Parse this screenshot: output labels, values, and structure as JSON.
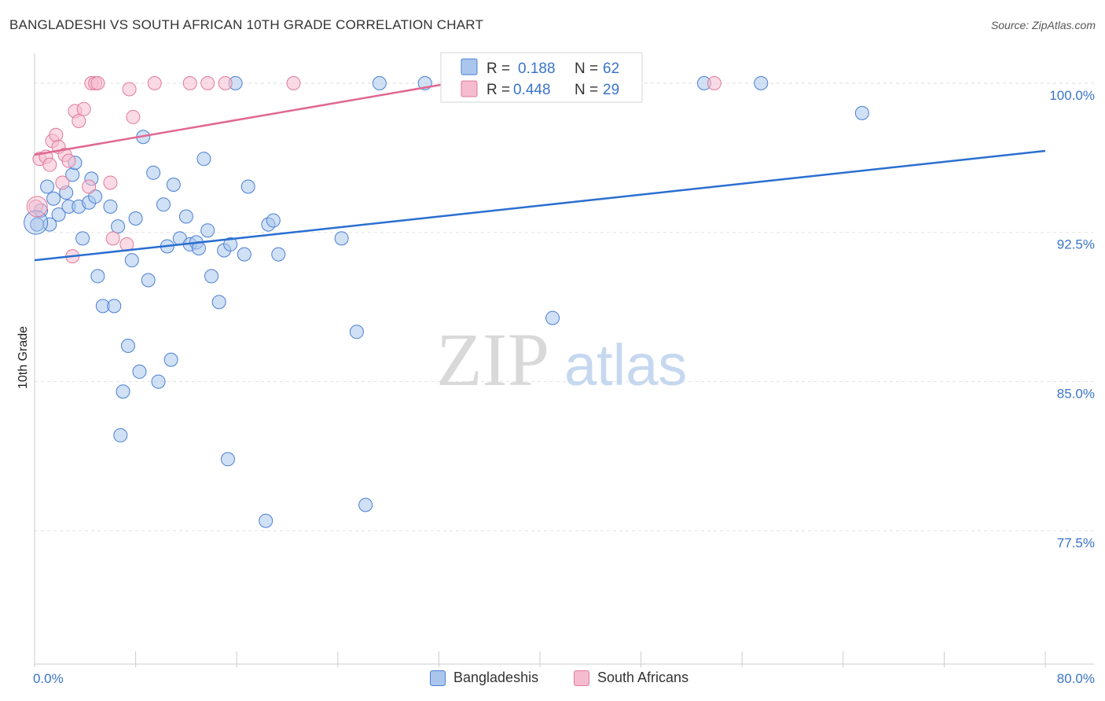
{
  "header": {
    "title": "BANGLADESHI VS SOUTH AFRICAN 10TH GRADE CORRELATION CHART",
    "source": "Source: ZipAtlas.com"
  },
  "watermark": {
    "zip": "ZIP",
    "atlas": "atlas"
  },
  "colors": {
    "blue": "#4a7fd4",
    "blue_fill": "#aac6ec",
    "blue_line": "#2a6fd0",
    "pink": "#e07a9a",
    "pink_fill": "#f5bcd0",
    "pink_line": "#e06890",
    "axis_text": "#3a74c9"
  },
  "legend": {
    "rows": [
      {
        "r_label": "R =",
        "r_value": "0.188",
        "n_label": "N =",
        "n_value": "62"
      },
      {
        "r_label": "R =",
        "r_value": "0.448",
        "n_label": "N =",
        "n_value": "29"
      }
    ]
  },
  "bottom_legend": {
    "items": [
      {
        "label": "Bangladeshis"
      },
      {
        "label": "South Africans"
      }
    ]
  },
  "chart_data": {
    "type": "scatter",
    "title": "BANGLADESHI VS SOUTH AFRICAN 10TH GRADE CORRELATION CHART",
    "xlabel": "",
    "ylabel": "10th Grade",
    "xlim": [
      0,
      80
    ],
    "ylim": [
      70.8,
      101.3
    ],
    "x_tick_labels": [
      "0.0%",
      "80.0%"
    ],
    "y_ticks": [
      77.5,
      85.0,
      92.5,
      100.0
    ],
    "y_tick_labels": [
      "77.5%",
      "85.0%",
      "92.5%",
      "100.0%"
    ],
    "grid": true,
    "legend_position": "top-center",
    "series": [
      {
        "name": "Bangladeshis",
        "r": 0.188,
        "n": 62,
        "trend": {
          "x": [
            0,
            80
          ],
          "y": [
            91.1,
            96.6
          ]
        },
        "points": [
          [
            0.2,
            92.9
          ],
          [
            0.5,
            93.6
          ],
          [
            1.0,
            94.8
          ],
          [
            1.2,
            92.9
          ],
          [
            1.5,
            94.2
          ],
          [
            1.9,
            93.4
          ],
          [
            2.5,
            94.5
          ],
          [
            2.7,
            93.8
          ],
          [
            3.0,
            95.4
          ],
          [
            3.2,
            96.0
          ],
          [
            3.5,
            93.8
          ],
          [
            3.8,
            92.2
          ],
          [
            4.3,
            94.0
          ],
          [
            4.5,
            95.2
          ],
          [
            4.8,
            94.3
          ],
          [
            5.0,
            90.3
          ],
          [
            5.4,
            88.8
          ],
          [
            6.0,
            93.8
          ],
          [
            6.3,
            88.8
          ],
          [
            6.6,
            92.8
          ],
          [
            6.8,
            82.3
          ],
          [
            7.0,
            84.5
          ],
          [
            7.4,
            86.8
          ],
          [
            7.7,
            91.1
          ],
          [
            8.0,
            93.2
          ],
          [
            8.3,
            85.5
          ],
          [
            8.6,
            97.3
          ],
          [
            9.0,
            90.1
          ],
          [
            9.4,
            95.5
          ],
          [
            9.8,
            85.0
          ],
          [
            10.2,
            93.9
          ],
          [
            10.5,
            91.8
          ],
          [
            10.8,
            86.1
          ],
          [
            11.0,
            94.9
          ],
          [
            11.5,
            92.2
          ],
          [
            12.0,
            93.3
          ],
          [
            12.3,
            91.9
          ],
          [
            12.8,
            92.0
          ],
          [
            13.0,
            91.7
          ],
          [
            13.4,
            96.2
          ],
          [
            13.7,
            92.6
          ],
          [
            14.0,
            90.3
          ],
          [
            14.6,
            89.0
          ],
          [
            15.0,
            91.6
          ],
          [
            15.3,
            81.1
          ],
          [
            15.5,
            91.9
          ],
          [
            15.9,
            100.0
          ],
          [
            16.6,
            91.4
          ],
          [
            16.9,
            94.8
          ],
          [
            18.3,
            78.0
          ],
          [
            18.5,
            92.9
          ],
          [
            18.9,
            93.1
          ],
          [
            19.3,
            91.4
          ],
          [
            24.3,
            92.2
          ],
          [
            25.5,
            87.5
          ],
          [
            26.2,
            78.8
          ],
          [
            27.3,
            100.0
          ],
          [
            30.9,
            100.0
          ],
          [
            41.0,
            88.2
          ],
          [
            53.0,
            100.0
          ],
          [
            57.5,
            100.0
          ],
          [
            65.5,
            98.5
          ]
        ]
      },
      {
        "name": "South Africans",
        "r": 0.448,
        "n": 29,
        "trend": {
          "x": [
            0,
            33.8
          ],
          "y": [
            96.4,
            100.1
          ]
        },
        "points": [
          [
            0.1,
            93.8
          ],
          [
            0.4,
            96.2
          ],
          [
            0.9,
            96.3
          ],
          [
            1.2,
            95.9
          ],
          [
            1.4,
            97.1
          ],
          [
            1.7,
            97.4
          ],
          [
            1.9,
            96.8
          ],
          [
            2.2,
            95.0
          ],
          [
            2.4,
            96.4
          ],
          [
            2.7,
            96.1
          ],
          [
            3.0,
            91.3
          ],
          [
            3.2,
            98.6
          ],
          [
            3.5,
            98.1
          ],
          [
            3.9,
            98.7
          ],
          [
            4.3,
            94.8
          ],
          [
            4.5,
            100.0
          ],
          [
            4.8,
            100.0
          ],
          [
            5.0,
            100.0
          ],
          [
            6.0,
            95.0
          ],
          [
            6.2,
            92.2
          ],
          [
            7.3,
            91.9
          ],
          [
            7.5,
            99.7
          ],
          [
            7.8,
            98.3
          ],
          [
            9.5,
            100.0
          ],
          [
            12.3,
            100.0
          ],
          [
            13.7,
            100.0
          ],
          [
            15.1,
            100.0
          ],
          [
            20.5,
            100.0
          ],
          [
            53.8,
            100.0
          ]
        ]
      }
    ]
  }
}
